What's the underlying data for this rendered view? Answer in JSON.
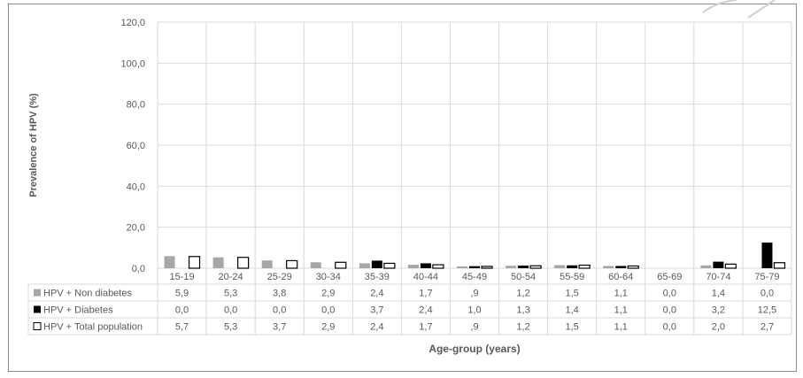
{
  "chart_data": {
    "type": "bar",
    "title": "",
    "xlabel": "Age-group (years)",
    "ylabel": "Prevalence of HPV (%)",
    "ylim": [
      0,
      120
    ],
    "yticks": [
      "0,0",
      "20,0",
      "40,0",
      "60,0",
      "80,0",
      "100,0",
      "120,0"
    ],
    "grid": true,
    "legend": "data-table",
    "categories": [
      "15-19",
      "20-24",
      "25-29",
      "30-34",
      "35-39",
      "40-44",
      "45-49",
      "50-54",
      "55-59",
      "60-64",
      "65-69",
      "70-74",
      "75-79"
    ],
    "series": [
      {
        "name": "HPV + Non diabetes",
        "color": "#a6a6a6",
        "values": [
          5.9,
          5.3,
          3.8,
          2.9,
          2.4,
          1.7,
          0.9,
          1.2,
          1.5,
          1.1,
          0.0,
          1.4,
          0.0
        ],
        "labels": [
          "5,9",
          "5,3",
          "3,8",
          "2,9",
          "2,4",
          "1,7",
          ",9",
          "1,2",
          "1,5",
          "1,1",
          "0,0",
          "1,4",
          "0,0"
        ]
      },
      {
        "name": "HPV + Diabetes",
        "color": "#000000",
        "values": [
          0.0,
          0.0,
          0.0,
          0.0,
          3.7,
          2.4,
          1.0,
          1.3,
          1.4,
          1.1,
          0.0,
          3.2,
          12.5
        ],
        "labels": [
          "0,0",
          "0,0",
          "0,0",
          "0,0",
          "3,7",
          "2,4",
          "1,0",
          "1,3",
          "1,4",
          "1,1",
          "0,0",
          "3,2",
          "12,5"
        ]
      },
      {
        "name": "HPV + Total population",
        "color": "#ffffff",
        "stroke": "#000000",
        "values": [
          5.7,
          5.3,
          3.7,
          2.9,
          2.4,
          1.7,
          0.9,
          1.2,
          1.5,
          1.1,
          0.0,
          2.0,
          2.7
        ],
        "labels": [
          "5,7",
          "5,3",
          "3,7",
          "2,9",
          "2,4",
          "1,7",
          ",9",
          "1,2",
          "1,5",
          "1,1",
          "0,0",
          "2,0",
          "2,7"
        ]
      }
    ]
  }
}
